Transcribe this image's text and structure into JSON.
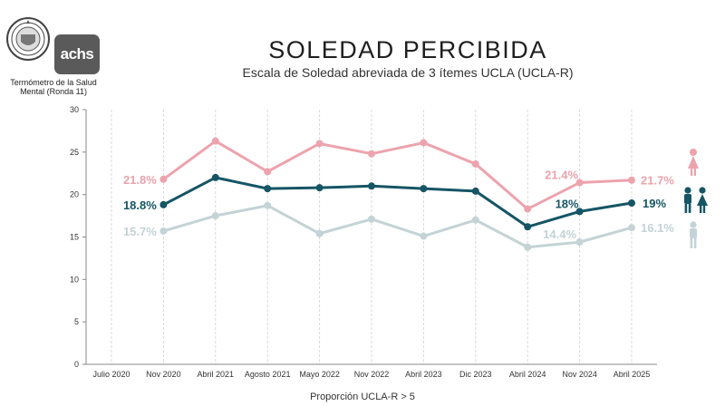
{
  "header": {
    "title": "SOLEDAD PERCIBIDA",
    "subtitle": "Escala de Soledad abreviada de 3 ítemes UCLA (UCLA-R)"
  },
  "logos": {
    "achs_text": "achs",
    "caption": "Termómetro de la Salud Mental (Ronda 11)"
  },
  "footer": {
    "label": "Proporción UCLA-R > 5"
  },
  "chart_data": {
    "type": "line",
    "title": "SOLEDAD PERCIBIDA",
    "xlabel": "Proporción UCLA-R > 5",
    "ylabel": "",
    "ylim": [
      0,
      30
    ],
    "yticks": [
      0,
      5,
      10,
      15,
      20,
      25,
      30
    ],
    "grid": "vertical",
    "categories": [
      "Julio 2020",
      "Nov 2020",
      "Abril 2021",
      "Agosto 2021",
      "Mayo 2022",
      "Nov 2022",
      "Abril 2023",
      "Dic 2023",
      "Abril 2024",
      "Nov 2024",
      "Abril 2025"
    ],
    "series": [
      {
        "name": "Mujeres",
        "color": "#eca3ad",
        "values": [
          null,
          21.8,
          26.3,
          22.7,
          26.0,
          24.8,
          26.1,
          23.6,
          18.3,
          21.4,
          21.7
        ],
        "labels": [
          null,
          "21.8%",
          null,
          null,
          null,
          null,
          null,
          null,
          null,
          "21.4%",
          "21.7%"
        ]
      },
      {
        "name": "Total",
        "color": "#155565",
        "values": [
          null,
          18.8,
          22.0,
          20.7,
          20.8,
          21.0,
          20.7,
          20.4,
          16.2,
          18.0,
          19.0
        ],
        "labels": [
          null,
          "18.8%",
          null,
          null,
          null,
          null,
          null,
          null,
          null,
          "18%",
          "19%"
        ]
      },
      {
        "name": "Hombres",
        "color": "#c3d3d6",
        "values": [
          null,
          15.7,
          17.5,
          18.7,
          15.4,
          17.1,
          15.1,
          17.0,
          13.8,
          14.4,
          16.1
        ],
        "labels": [
          null,
          "15.7%",
          null,
          null,
          null,
          null,
          null,
          null,
          null,
          "14.4%",
          "16.1%"
        ]
      }
    ]
  },
  "legend_icons": [
    {
      "name": "female-icon",
      "color": "#eca3ad"
    },
    {
      "name": "couple-icon",
      "color": "#155565"
    },
    {
      "name": "male-icon",
      "color": "#c3d3d6"
    }
  ]
}
